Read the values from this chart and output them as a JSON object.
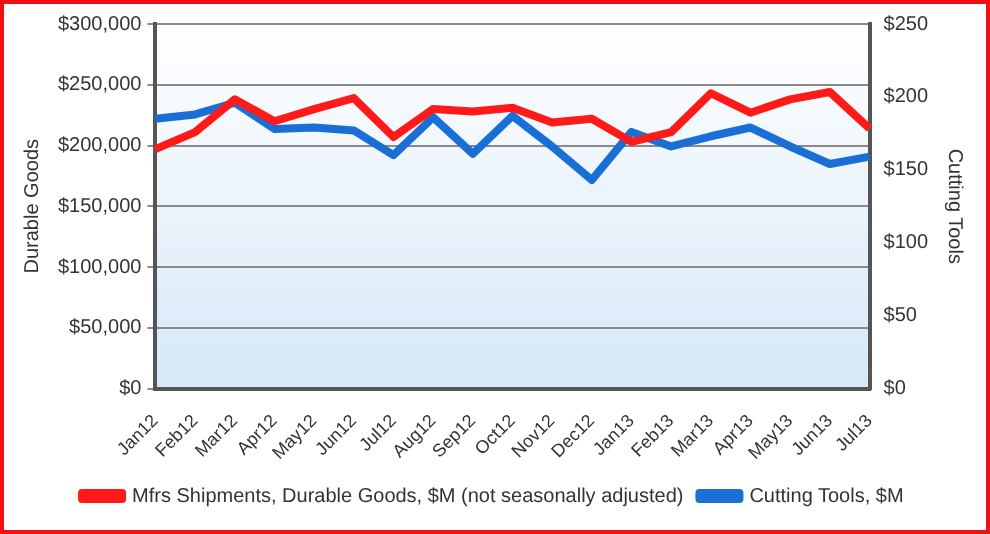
{
  "chart_data": {
    "type": "line",
    "categories": [
      "Jan12",
      "Feb12",
      "Mar12",
      "Apr12",
      "May12",
      "Jun12",
      "Jul12",
      "Aug12",
      "Sep12",
      "Oct12",
      "Nov12",
      "Dec12",
      "Jan13",
      "Feb13",
      "Mar13",
      "Apr13",
      "May13",
      "Jun13",
      "Jul13"
    ],
    "series": [
      {
        "name": "Mfrs Shipments, Durable Goods, $M (not seasonally adjusted)",
        "color": "#ff1a1a",
        "values": [
          197000,
          211000,
          238000,
          220000,
          230000,
          239000,
          207000,
          230000,
          228000,
          231000,
          219000,
          222000,
          203000,
          211000,
          243000,
          227000,
          238000,
          244000,
          214000
        ]
      },
      {
        "name": "Cutting Tools, $M",
        "color": "#1a6fd6",
        "axis": "y2",
        "values": [
          185,
          188,
          196,
          178,
          179,
          177,
          160,
          186,
          161,
          187,
          166,
          143,
          176,
          166,
          173,
          179,
          166,
          154,
          159
        ]
      }
    ],
    "ylabel": "Durable Goods",
    "y2label": "Cutting Tools",
    "ylim": [
      0,
      300000
    ],
    "yticks": [
      {
        "value": 0,
        "label": "$0"
      },
      {
        "value": 50000,
        "label": "$50,000"
      },
      {
        "value": 100000,
        "label": "$100,000"
      },
      {
        "value": 150000,
        "label": "$150,000"
      },
      {
        "value": 200000,
        "label": "$200,000"
      },
      {
        "value": 250000,
        "label": "$250,000"
      },
      {
        "value": 300000,
        "label": "$300,000"
      }
    ],
    "y2lim": [
      0,
      250
    ],
    "y2ticks": [
      {
        "value": 0,
        "label": "$0"
      },
      {
        "value": 50,
        "label": "$50"
      },
      {
        "value": 100,
        "label": "$100"
      },
      {
        "value": 150,
        "label": "$150"
      },
      {
        "value": 200,
        "label": "$200"
      },
      {
        "value": 250,
        "label": "$250"
      }
    ],
    "grid": "y",
    "legend": "bottom",
    "marker": "none",
    "line_style": "solid"
  }
}
